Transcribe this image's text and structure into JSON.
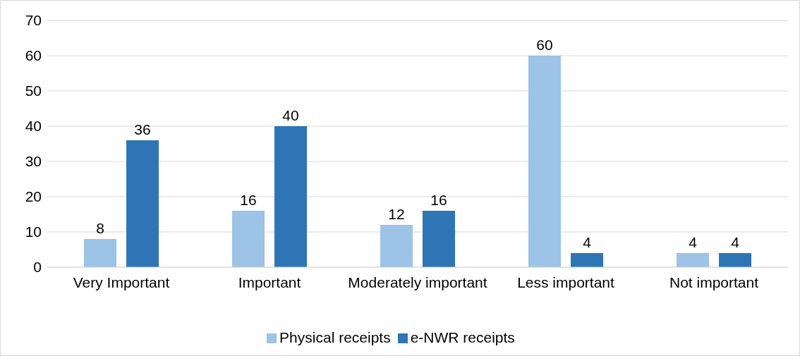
{
  "chart_data": {
    "type": "bar",
    "categories": [
      "Very Important",
      "Important",
      "Moderately important",
      "Less important",
      "Not important"
    ],
    "series": [
      {
        "name": "Physical receipts",
        "color": "#9dc3e6",
        "values": [
          8,
          16,
          12,
          60,
          4
        ]
      },
      {
        "name": "e-NWR receipts",
        "color": "#2e75b6",
        "values": [
          36,
          40,
          16,
          4,
          4
        ]
      }
    ],
    "ylim": [
      0,
      70
    ],
    "yticks": [
      0,
      10,
      20,
      30,
      40,
      50,
      60,
      70
    ],
    "grid": "y",
    "legend": "bottom",
    "data_labels": true
  }
}
